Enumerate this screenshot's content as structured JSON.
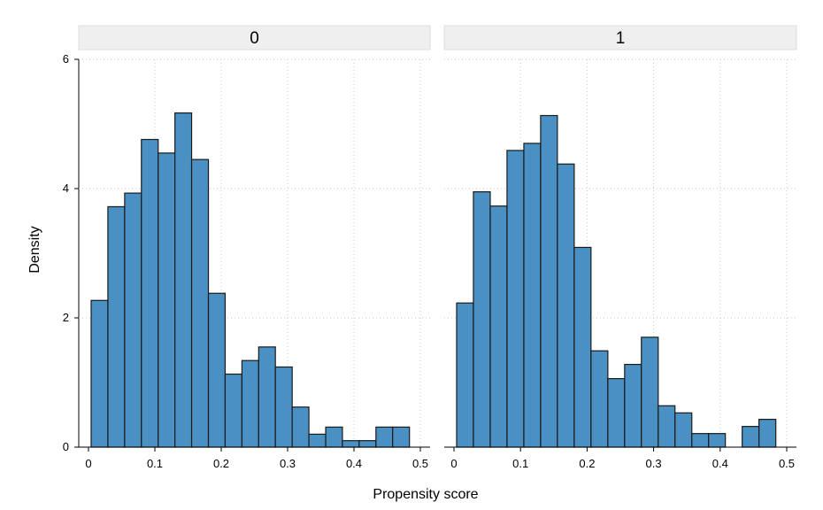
{
  "chart_data": {
    "type": "bar",
    "subtype": "histogram-facets",
    "xlabel": "Propensity score",
    "ylabel": "Density",
    "xlim": [
      0,
      0.5
    ],
    "ylim": [
      0,
      6
    ],
    "x_ticks": [
      0,
      0.1,
      0.2,
      0.3,
      0.4,
      0.5
    ],
    "x_tick_labels": [
      "0",
      "0.1",
      "0.2",
      "0.3",
      "0.4",
      "0.5"
    ],
    "y_ticks": [
      0,
      2,
      4,
      6
    ],
    "y_tick_labels": [
      "0",
      "2",
      "4",
      "6"
    ],
    "grid": true,
    "bar_color": "#4a90c2",
    "bar_edge_color": "#1a1a1a",
    "strip_color": "#efefef",
    "panels": [
      {
        "label": "0",
        "bins": [
          {
            "x0": 0.004,
            "x1": 0.0292,
            "y": 2.27
          },
          {
            "x0": 0.0292,
            "x1": 0.0545,
            "y": 3.72
          },
          {
            "x0": 0.0545,
            "x1": 0.0797,
            "y": 3.93
          },
          {
            "x0": 0.0797,
            "x1": 0.105,
            "y": 4.76
          },
          {
            "x0": 0.105,
            "x1": 0.1302,
            "y": 4.55
          },
          {
            "x0": 0.1302,
            "x1": 0.1554,
            "y": 5.17
          },
          {
            "x0": 0.1554,
            "x1": 0.1807,
            "y": 4.45
          },
          {
            "x0": 0.1807,
            "x1": 0.2059,
            "y": 2.38
          },
          {
            "x0": 0.2059,
            "x1": 0.2312,
            "y": 1.13
          },
          {
            "x0": 0.2312,
            "x1": 0.2564,
            "y": 1.34
          },
          {
            "x0": 0.2564,
            "x1": 0.2816,
            "y": 1.55
          },
          {
            "x0": 0.2816,
            "x1": 0.3069,
            "y": 1.24
          },
          {
            "x0": 0.3069,
            "x1": 0.3321,
            "y": 0.62
          },
          {
            "x0": 0.3321,
            "x1": 0.3574,
            "y": 0.2
          },
          {
            "x0": 0.3574,
            "x1": 0.3826,
            "y": 0.31
          },
          {
            "x0": 0.3826,
            "x1": 0.4078,
            "y": 0.1
          },
          {
            "x0": 0.4078,
            "x1": 0.4331,
            "y": 0.1
          },
          {
            "x0": 0.4331,
            "x1": 0.4583,
            "y": 0.31
          },
          {
            "x0": 0.4583,
            "x1": 0.4836,
            "y": 0.31
          }
        ]
      },
      {
        "label": "1",
        "bins": [
          {
            "x0": 0.004,
            "x1": 0.0292,
            "y": 2.23
          },
          {
            "x0": 0.0292,
            "x1": 0.0545,
            "y": 3.95
          },
          {
            "x0": 0.0545,
            "x1": 0.0797,
            "y": 3.73
          },
          {
            "x0": 0.0797,
            "x1": 0.105,
            "y": 4.59
          },
          {
            "x0": 0.105,
            "x1": 0.1302,
            "y": 4.7
          },
          {
            "x0": 0.1302,
            "x1": 0.1554,
            "y": 5.13
          },
          {
            "x0": 0.1554,
            "x1": 0.1807,
            "y": 4.38
          },
          {
            "x0": 0.1807,
            "x1": 0.2059,
            "y": 3.09
          },
          {
            "x0": 0.2059,
            "x1": 0.2312,
            "y": 1.49
          },
          {
            "x0": 0.2312,
            "x1": 0.2564,
            "y": 1.06
          },
          {
            "x0": 0.2564,
            "x1": 0.2816,
            "y": 1.28
          },
          {
            "x0": 0.2816,
            "x1": 0.3069,
            "y": 1.7
          },
          {
            "x0": 0.3069,
            "x1": 0.3321,
            "y": 0.64
          },
          {
            "x0": 0.3321,
            "x1": 0.3574,
            "y": 0.53
          },
          {
            "x0": 0.3574,
            "x1": 0.3826,
            "y": 0.21
          },
          {
            "x0": 0.3826,
            "x1": 0.4078,
            "y": 0.21
          },
          {
            "x0": 0.4331,
            "x1": 0.4583,
            "y": 0.32
          },
          {
            "x0": 0.4583,
            "x1": 0.4836,
            "y": 0.43
          }
        ]
      }
    ]
  }
}
